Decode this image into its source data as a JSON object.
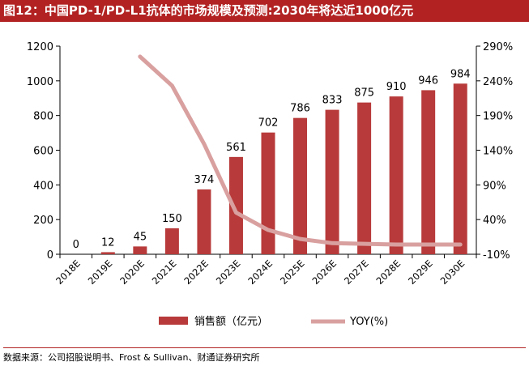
{
  "title": "图12：中国PD-1/PD-L1抗体的市场规模及预测:2030年将达近1000亿元",
  "source": "数据来源：公司招股说明书、Frost & Sullivan、财通证券研究所",
  "colors": {
    "title_bg": "#b22222",
    "bar": "#b83a3a",
    "line": "#d9a0a0"
  },
  "chart_data": {
    "type": "bar",
    "categories": [
      "2018E",
      "2019E",
      "2020E",
      "2021E",
      "2022E",
      "2023E",
      "2024E",
      "2025E",
      "2026E",
      "2027E",
      "2028E",
      "2029E",
      "2030E"
    ],
    "series": [
      {
        "name": "销售额（亿元）",
        "type": "bar",
        "axis": "left",
        "values": [
          0,
          12,
          45,
          150,
          374,
          561,
          702,
          786,
          833,
          875,
          910,
          946,
          984
        ],
        "labels": [
          "0",
          "12",
          "45",
          "150",
          "374",
          "561",
          "702",
          "786",
          "833",
          "875",
          "910",
          "946",
          "984"
        ]
      },
      {
        "name": "YOY(%)",
        "type": "line",
        "axis": "right",
        "values": [
          null,
          null,
          275,
          233,
          149,
          50,
          25,
          12,
          6,
          5,
          4,
          4,
          4
        ]
      }
    ],
    "y_left": {
      "min": 0,
      "max": 1200,
      "ticks": [
        "0",
        "200",
        "400",
        "600",
        "800",
        "1000",
        "1200"
      ]
    },
    "y_right": {
      "min": -10,
      "max": 290,
      "ticks": [
        "-10%",
        "40%",
        "90%",
        "140%",
        "190%",
        "240%",
        "290%"
      ]
    },
    "legend_position": "bottom",
    "grid": false
  }
}
